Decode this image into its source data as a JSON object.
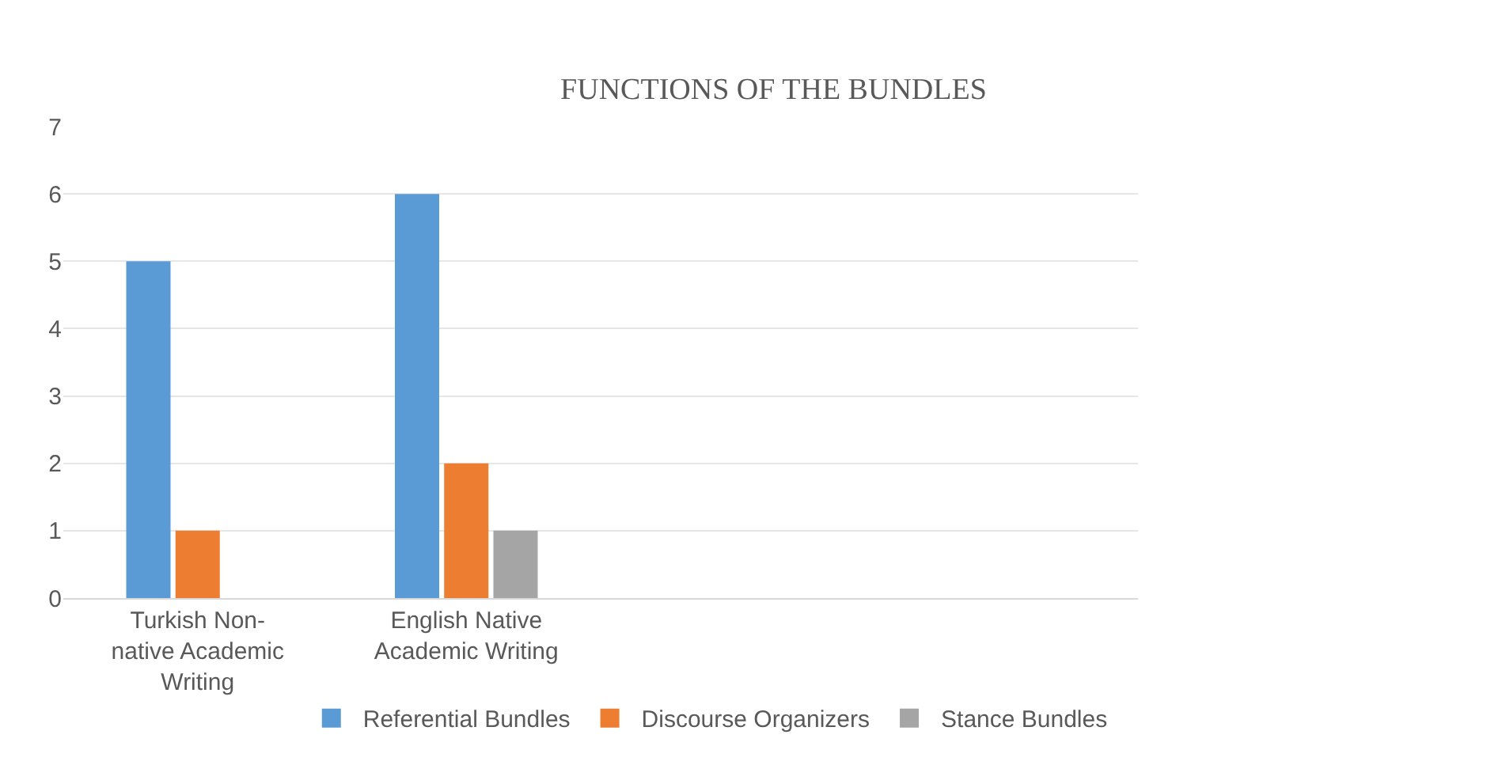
{
  "chart_data": {
    "type": "bar",
    "title": "FUNCTIONS OF THE BUNDLES",
    "categories": [
      "Turkish Non-native Academic Writing",
      "English Native Academic Writing",
      null,
      null
    ],
    "series": [
      {
        "name": "Referential Bundles",
        "color": "#5b9bd5",
        "values": [
          5,
          6,
          null,
          null
        ]
      },
      {
        "name": "Discourse Organizers",
        "color": "#ed7d31",
        "values": [
          1,
          2,
          null,
          null
        ]
      },
      {
        "name": "Stance Bundles",
        "color": "#a5a5a5",
        "values": [
          0,
          1,
          null,
          null
        ]
      }
    ],
    "ylim": [
      0,
      7
    ],
    "yticks": [
      0,
      1,
      2,
      3,
      4,
      5,
      6,
      7
    ],
    "grid": "y",
    "legend": "bottom"
  }
}
